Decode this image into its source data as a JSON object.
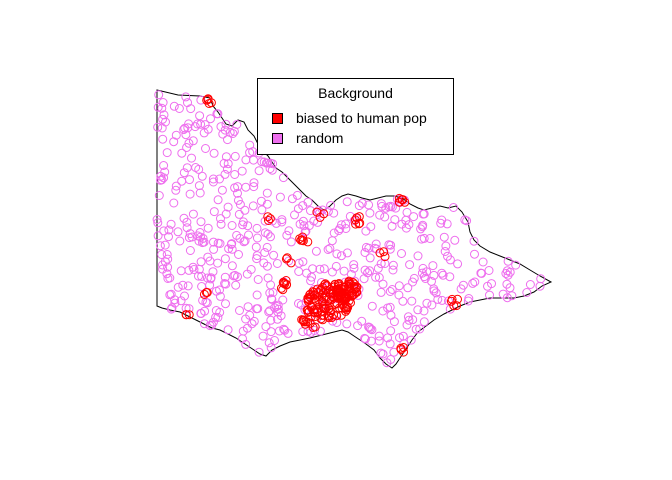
{
  "legend": {
    "title": "Background",
    "items": [
      {
        "label": "biased to human pop",
        "color": "#ff0000"
      },
      {
        "label": "random",
        "color": "#ee6eee"
      }
    ]
  },
  "map": {
    "region_outline_color": "#000000",
    "point_marker": "open-circle"
  }
}
